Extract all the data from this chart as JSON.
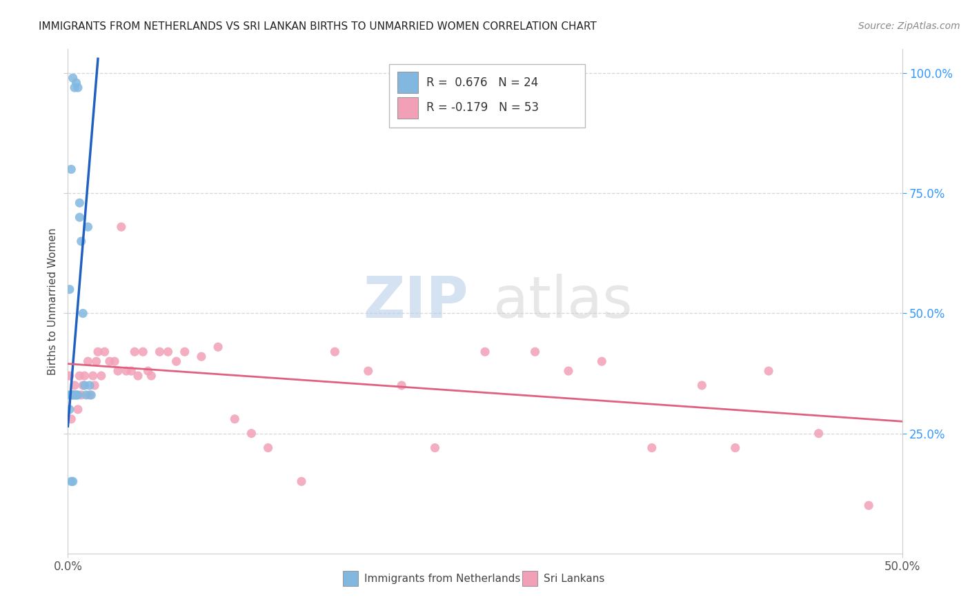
{
  "title": "IMMIGRANTS FROM NETHERLANDS VS SRI LANKAN BIRTHS TO UNMARRIED WOMEN CORRELATION CHART",
  "source_text": "Source: ZipAtlas.com",
  "ylabel": "Births to Unmarried Women",
  "watermark_zip": "ZIP",
  "watermark_atlas": "atlas",
  "legend_blue_r": "R =  0.676",
  "legend_blue_n": "N = 24",
  "legend_pink_r": "R = -0.179",
  "legend_pink_n": "N = 53",
  "blue_color": "#82b8e0",
  "pink_color": "#f2a0b8",
  "trend_blue": "#2060c0",
  "trend_pink": "#e06080",
  "grid_color": "#cccccc",
  "background_color": "#ffffff",
  "xlim": [
    0.0,
    0.5
  ],
  "ylim": [
    0.0,
    1.05
  ],
  "blue_points_x": [
    0.001,
    0.002,
    0.003,
    0.004,
    0.005,
    0.006,
    0.007,
    0.008,
    0.009,
    0.01,
    0.011,
    0.012,
    0.013,
    0.014,
    0.005,
    0.003,
    0.004,
    0.006,
    0.007,
    0.002,
    0.001,
    0.001,
    0.002,
    0.003
  ],
  "blue_points_y": [
    0.33,
    0.33,
    0.33,
    0.33,
    0.33,
    0.33,
    0.7,
    0.65,
    0.5,
    0.35,
    0.33,
    0.68,
    0.35,
    0.33,
    0.98,
    0.99,
    0.97,
    0.97,
    0.73,
    0.8,
    0.55,
    0.3,
    0.15,
    0.15
  ],
  "pink_points_x": [
    0.001,
    0.002,
    0.003,
    0.004,
    0.005,
    0.006,
    0.007,
    0.008,
    0.009,
    0.01,
    0.012,
    0.013,
    0.015,
    0.016,
    0.017,
    0.018,
    0.02,
    0.022,
    0.025,
    0.028,
    0.03,
    0.032,
    0.035,
    0.038,
    0.04,
    0.042,
    0.045,
    0.048,
    0.05,
    0.055,
    0.06,
    0.065,
    0.07,
    0.08,
    0.09,
    0.1,
    0.11,
    0.12,
    0.14,
    0.16,
    0.18,
    0.2,
    0.22,
    0.25,
    0.28,
    0.3,
    0.32,
    0.35,
    0.38,
    0.4,
    0.42,
    0.45,
    0.48
  ],
  "pink_points_y": [
    0.37,
    0.28,
    0.33,
    0.35,
    0.33,
    0.3,
    0.37,
    0.33,
    0.35,
    0.37,
    0.4,
    0.33,
    0.37,
    0.35,
    0.4,
    0.42,
    0.37,
    0.42,
    0.4,
    0.4,
    0.38,
    0.68,
    0.38,
    0.38,
    0.42,
    0.37,
    0.42,
    0.38,
    0.37,
    0.42,
    0.42,
    0.4,
    0.42,
    0.41,
    0.43,
    0.28,
    0.25,
    0.22,
    0.15,
    0.42,
    0.38,
    0.35,
    0.22,
    0.42,
    0.42,
    0.38,
    0.4,
    0.22,
    0.35,
    0.22,
    0.38,
    0.25,
    0.1
  ],
  "blue_trend_x0": 0.0,
  "blue_trend_x1": 0.018,
  "blue_trend_y0": 0.265,
  "blue_trend_y1": 1.03,
  "pink_trend_x0": 0.0,
  "pink_trend_x1": 0.5,
  "pink_trend_y0": 0.395,
  "pink_trend_y1": 0.275
}
